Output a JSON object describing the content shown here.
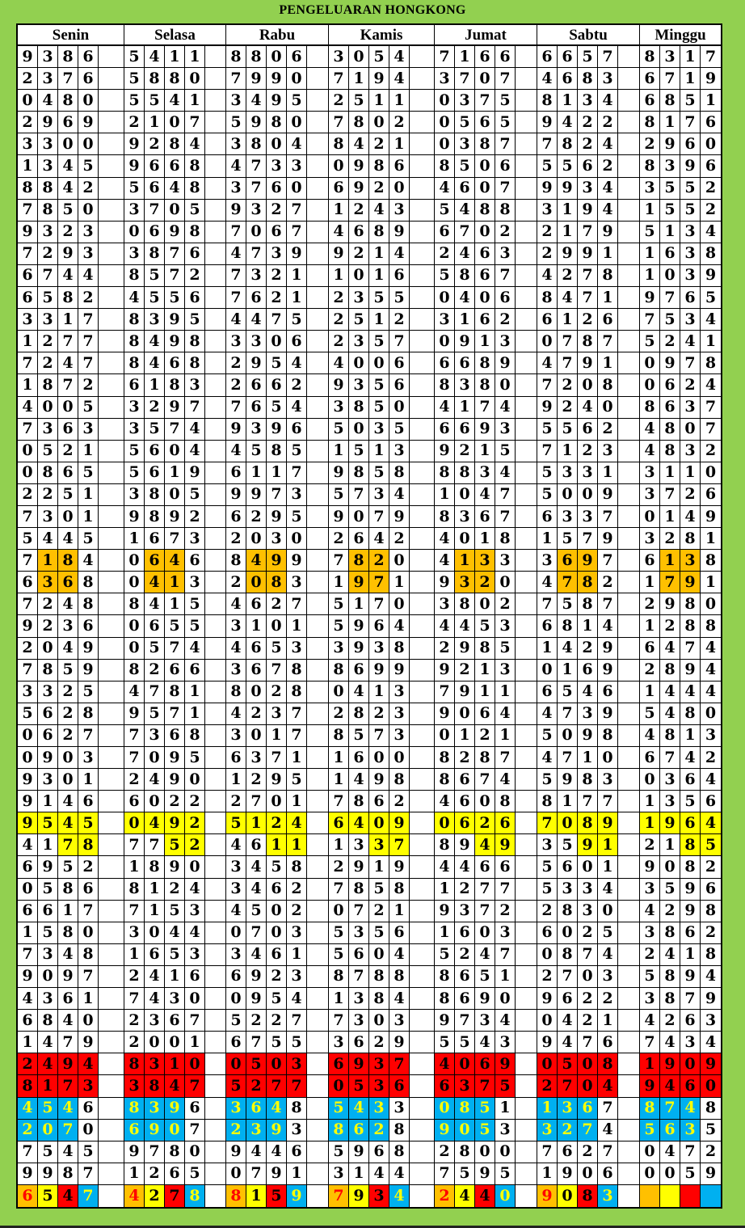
{
  "title": "PENGELUARAN HONGKONG",
  "colors": {
    "background": "#92d050",
    "orange": "#ffc000",
    "yellow": "#ffff00",
    "red": "#ff0000",
    "blue": "#00b0f0",
    "blue_text": "#ffff00",
    "orange_text": "#ff0000"
  },
  "days": [
    {
      "name": "Senin",
      "rows": [
        "9386",
        "2376",
        "0480",
        "2969",
        "3300",
        "1345",
        "8842",
        "7850",
        "9323",
        "7293",
        "6744",
        "6582",
        "3317",
        "1277",
        "7247",
        "1872",
        "4005",
        "7363",
        "0521",
        "0865",
        "2251",
        "7301",
        "5445",
        "7184",
        "6368",
        "7248",
        "9236",
        "2049",
        "7859",
        "3325",
        "5628",
        "0627",
        "0903",
        "9301",
        "9146",
        "9545",
        "4178",
        "6952",
        "0586",
        "6617",
        "1580",
        "7348",
        "9097",
        "4361",
        "6840",
        "1479",
        "2494",
        "8173",
        "4546",
        "2070",
        "7545",
        "9987",
        "6547"
      ]
    },
    {
      "name": "Selasa",
      "rows": [
        "5411",
        "5880",
        "5541",
        "2107",
        "9284",
        "9668",
        "5648",
        "3705",
        "0698",
        "3876",
        "8572",
        "4556",
        "8395",
        "8498",
        "8468",
        "6183",
        "3297",
        "3574",
        "5604",
        "5619",
        "3805",
        "9892",
        "1673",
        "0646",
        "0413",
        "8415",
        "0655",
        "0574",
        "8266",
        "4781",
        "9571",
        "7368",
        "7095",
        "2490",
        "6022",
        "0492",
        "7752",
        "1890",
        "8124",
        "7153",
        "3044",
        "1653",
        "2416",
        "7430",
        "2367",
        "2001",
        "8310",
        "3847",
        "8396",
        "6907",
        "9780",
        "1265",
        "4278"
      ]
    },
    {
      "name": "Rabu",
      "rows": [
        "8806",
        "7990",
        "3495",
        "5980",
        "3804",
        "4733",
        "3760",
        "9327",
        "7067",
        "4739",
        "7321",
        "7621",
        "4475",
        "3306",
        "2954",
        "2662",
        "7654",
        "9396",
        "4585",
        "6117",
        "9973",
        "6295",
        "2030",
        "8499",
        "2083",
        "4627",
        "3101",
        "4653",
        "3678",
        "8028",
        "4237",
        "3017",
        "6371",
        "1295",
        "2701",
        "5124",
        "4611",
        "3458",
        "3462",
        "4502",
        "0703",
        "3461",
        "6923",
        "0954",
        "5227",
        "6755",
        "0503",
        "5277",
        "3648",
        "2393",
        "9446",
        "0791",
        "8159"
      ]
    },
    {
      "name": "Kamis",
      "rows": [
        "3054",
        "7194",
        "2511",
        "7802",
        "8421",
        "0986",
        "6920",
        "1243",
        "4689",
        "9214",
        "1016",
        "2355",
        "2512",
        "2357",
        "4006",
        "9356",
        "3850",
        "5035",
        "1513",
        "9858",
        "5734",
        "9079",
        "2642",
        "7820",
        "1971",
        "5170",
        "5964",
        "3938",
        "8699",
        "0413",
        "2823",
        "8573",
        "1600",
        "1498",
        "7862",
        "6409",
        "1337",
        "2919",
        "7858",
        "0721",
        "5356",
        "5604",
        "8788",
        "1384",
        "7303",
        "3629",
        "6937",
        "0536",
        "5433",
        "8628",
        "5968",
        "3144",
        "7934"
      ]
    },
    {
      "name": "Jumat",
      "rows": [
        "7166",
        "3707",
        "0375",
        "0565",
        "0387",
        "8506",
        "4607",
        "5488",
        "6702",
        "2463",
        "5867",
        "0406",
        "3162",
        "0913",
        "6689",
        "8380",
        "4174",
        "6693",
        "9215",
        "8834",
        "1047",
        "8367",
        "4018",
        "4133",
        "9320",
        "3802",
        "4453",
        "2985",
        "9213",
        "7911",
        "9064",
        "0121",
        "8287",
        "8674",
        "4608",
        "0626",
        "8949",
        "4466",
        "1277",
        "9372",
        "1603",
        "5247",
        "8651",
        "8690",
        "9734",
        "5543",
        "4069",
        "6375",
        "0851",
        "9053",
        "2800",
        "7595",
        "2440"
      ]
    },
    {
      "name": "Sabtu",
      "rows": [
        "6657",
        "4683",
        "8134",
        "9422",
        "7824",
        "5562",
        "9934",
        "3194",
        "2179",
        "2991",
        "4278",
        "8471",
        "6126",
        "0787",
        "4791",
        "7208",
        "9240",
        "5562",
        "7123",
        "5331",
        "5009",
        "6337",
        "1579",
        "3697",
        "4782",
        "7587",
        "6814",
        "1429",
        "0169",
        "6546",
        "4739",
        "5098",
        "4710",
        "5983",
        "8177",
        "7089",
        "3591",
        "5601",
        "5334",
        "2830",
        "6025",
        "0874",
        "2703",
        "9622",
        "0421",
        "9476",
        "0508",
        "2704",
        "1367",
        "3274",
        "7627",
        "1906",
        "9083"
      ]
    },
    {
      "name": "Minggu",
      "rows": [
        "8317",
        "6719",
        "6851",
        "8176",
        "2960",
        "8396",
        "3552",
        "1552",
        "5134",
        "1638",
        "1039",
        "9765",
        "7534",
        "5241",
        "0978",
        "0624",
        "8637",
        "4807",
        "4832",
        "3110",
        "3726",
        "0149",
        "3281",
        "6138",
        "1791",
        "2980",
        "1288",
        "6474",
        "2894",
        "1444",
        "5480",
        "4813",
        "6742",
        "0364",
        "1356",
        "1964",
        "2185",
        "9082",
        "3596",
        "4298",
        "3862",
        "2418",
        "5894",
        "3879",
        "4263",
        "7434",
        "1909",
        "9460",
        "8748",
        "5635",
        "0472",
        "0059",
        ""
      ]
    }
  ]
}
